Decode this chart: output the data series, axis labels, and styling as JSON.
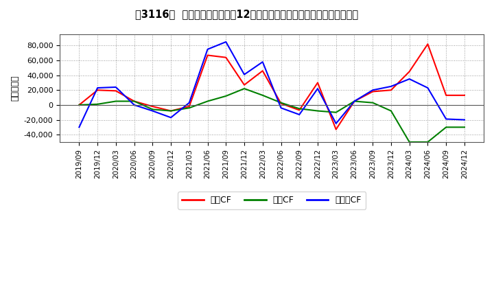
{
  "title2": "［3116］ キャッシュフローの12か月移動合計の対前年同期増減額の推移",
  "ylabel": "（百万円）",
  "background_color": "#ffffff",
  "plot_bg_color": "#ffffff",
  "grid_color": "#aaaaaa",
  "ylim": [
    -50000,
    95000
  ],
  "yticks": [
    -40000,
    -20000,
    0,
    20000,
    40000,
    60000,
    80000
  ],
  "legend": [
    "営業CF",
    "投資CF",
    "フリーCF"
  ],
  "line_colors": {
    "eigyo": "#ff0000",
    "toshi": "#008000",
    "free": "#0000ff"
  },
  "x_labels": [
    "2019/09",
    "2019/12",
    "2020/03",
    "2020/06",
    "2020/09",
    "2020/12",
    "2021/03",
    "2021/06",
    "2021/09",
    "2021/12",
    "2022/03",
    "2022/06",
    "2022/09",
    "2022/12",
    "2023/03",
    "2023/06",
    "2023/09",
    "2023/12",
    "2024/03",
    "2024/06",
    "2024/09",
    "2024/12"
  ],
  "eigyo_cf": [
    0,
    20000,
    19000,
    5000,
    -2000,
    -8000,
    -2000,
    67000,
    64000,
    27000,
    46000,
    2000,
    -7000,
    30000,
    -33000,
    5000,
    18000,
    20000,
    45000,
    82000,
    13000,
    13000
  ],
  "toshi_cf": [
    0,
    1000,
    5000,
    5000,
    -6000,
    -8000,
    -4000,
    5000,
    12000,
    22000,
    13000,
    3000,
    -5000,
    -8000,
    -10000,
    5000,
    3000,
    -8000,
    -50000,
    -50000,
    -30000,
    -30000
  ],
  "free_cf": [
    -30000,
    23000,
    24000,
    0,
    -8000,
    -17000,
    3000,
    75000,
    85000,
    41000,
    58000,
    -4000,
    -13000,
    22000,
    -25000,
    5000,
    20000,
    25000,
    35000,
    23000,
    -19000,
    -20000
  ]
}
